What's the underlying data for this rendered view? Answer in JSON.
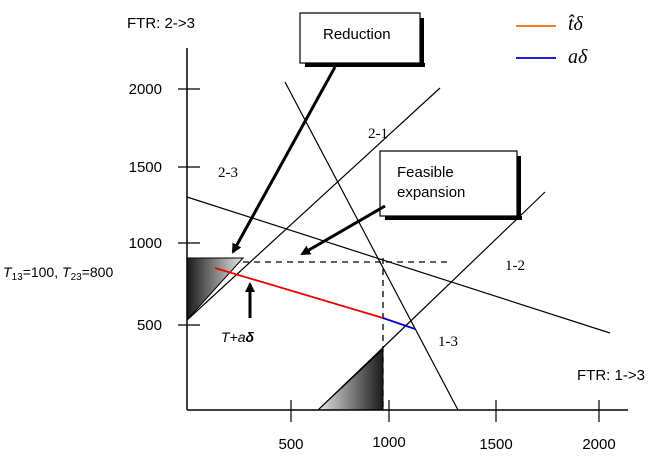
{
  "axes": {
    "y_title": "FTR: 2->3",
    "x_title": "FTR: 1->3",
    "y_ticks": [
      "2000",
      "1500",
      "1000",
      "500"
    ],
    "x_ticks": [
      "500",
      "1000",
      "1500",
      "2000"
    ]
  },
  "boxes": {
    "reduction": "Reduction",
    "feasible_line1": "Feasible",
    "feasible_line2": "expansion"
  },
  "constraint_labels": {
    "l21": "2-1",
    "l23": "2-3",
    "l12": "1-2",
    "l13": "1-3"
  },
  "point_label": {
    "t13_sym": "T",
    "t13_sub": "13",
    "t13_val": "=100, ",
    "t23_sym": "T",
    "t23_sub": "23",
    "t23_val": "=800"
  },
  "arrow_label": {
    "prefix": "T+a",
    "delta": "δ"
  },
  "legend": {
    "hat_t_delta": "t̂δ",
    "a_delta": "aδ"
  },
  "colors": {
    "hat_t_delta": "#ff6600",
    "a_delta": "#0000cc",
    "red_path": "#ee0000",
    "axis": "#000000"
  }
}
